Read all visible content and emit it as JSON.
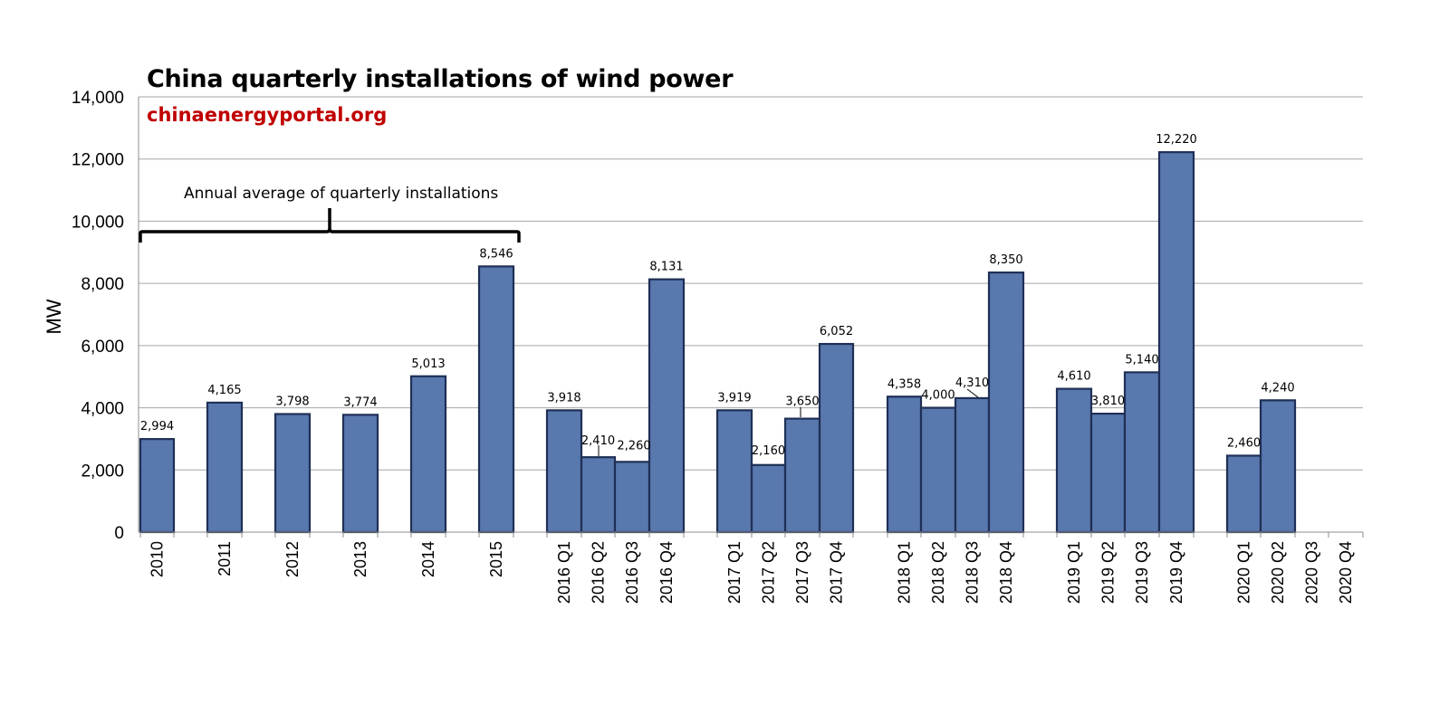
{
  "colors": {
    "bar_fill": "#5878AE",
    "bar_stroke": "#1F2F55",
    "grid": "#A6A6A6",
    "source_text": "#C00000"
  },
  "chart_data": {
    "type": "bar",
    "title": "China quarterly installations of wind power",
    "source": "chinaenergyportal.org",
    "ylabel": "MW",
    "xlabel": "",
    "ylim": [
      0,
      14000
    ],
    "yticks": [
      0,
      2000,
      4000,
      6000,
      8000,
      10000,
      12000,
      14000
    ],
    "ytick_labels": [
      "0",
      "2,000",
      "4,000",
      "6,000",
      "8,000",
      "10,000",
      "12,000",
      "14,000"
    ],
    "grid": true,
    "legend": "none",
    "annotation": "Annual average of quarterly installations",
    "categories": [
      "2010",
      "2011",
      "2012",
      "2013",
      "2014",
      "2015",
      "2016 Q1",
      "2016 Q2",
      "2016 Q3",
      "2016 Q4",
      "2017 Q1",
      "2017 Q2",
      "2017 Q3",
      "2017 Q4",
      "2018 Q1",
      "2018 Q2",
      "2018 Q3",
      "2018 Q4",
      "2019 Q1",
      "2019 Q2",
      "2019 Q3",
      "2019 Q4",
      "2020 Q1",
      "2020 Q2",
      "2020 Q3",
      "2020 Q4"
    ],
    "values": [
      2994,
      4165,
      3798,
      3774,
      5013,
      8546,
      3918,
      2410,
      2260,
      8131,
      3919,
      2160,
      3650,
      6052,
      4358,
      4000,
      4310,
      8350,
      4610,
      3810,
      5140,
      12220,
      2460,
      4240,
      null,
      null
    ],
    "value_labels": [
      "2,994",
      "4,165",
      "3,798",
      "3,774",
      "5,013",
      "8,546",
      "3,918",
      "2,410",
      "2,260",
      "8,131",
      "3,919",
      "2,160",
      "3,650",
      "6,052",
      "4,358",
      "4,000",
      "4,310",
      "8,350",
      "4,610",
      "3,810",
      "5,140",
      "12,220",
      "2,460",
      "4,240",
      "",
      ""
    ]
  }
}
